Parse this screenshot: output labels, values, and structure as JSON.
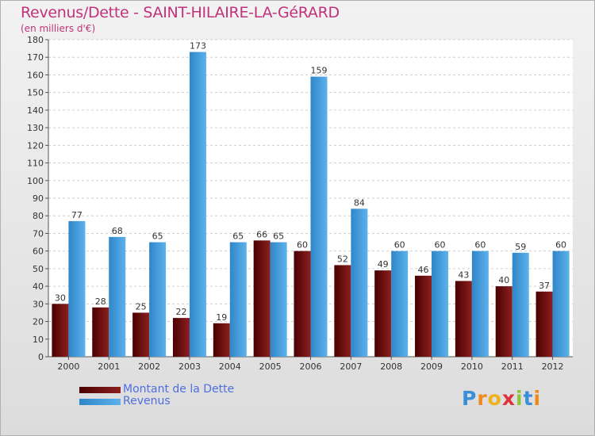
{
  "title": "Revenus/Dette - SAINT-HILAIRE-LA-GéRARD",
  "subtitle": "(en milliers d'€)",
  "legend": {
    "dette": "Montant de la Dette",
    "revenus": "Revenus"
  },
  "logo": {
    "text": "Proxiti",
    "letters": [
      "P",
      "r",
      "o",
      "x",
      "i",
      "t",
      "i"
    ]
  },
  "colors": {
    "title": "#c0327a",
    "legend_text": "#4f6ee0",
    "dette_dark": "#4a0000",
    "dette_light": "#8c2020",
    "revenus_dark": "#2f86c8",
    "revenus_light": "#5db2ec"
  },
  "chart_data": {
    "type": "bar",
    "title": "Revenus/Dette - SAINT-HILAIRE-LA-GéRARD",
    "ylabel": "(en milliers d'€)",
    "xlabel": "",
    "categories": [
      "2000",
      "2001",
      "2002",
      "2003",
      "2004",
      "2005",
      "2006",
      "2007",
      "2008",
      "2009",
      "2010",
      "2011",
      "2012"
    ],
    "series": [
      {
        "name": "Montant de la Dette",
        "values": [
          30,
          28,
          25,
          22,
          19,
          66,
          60,
          52,
          49,
          46,
          43,
          40,
          37
        ]
      },
      {
        "name": "Revenus",
        "values": [
          77,
          68,
          65,
          173,
          65,
          65,
          159,
          84,
          60,
          60,
          60,
          59,
          60
        ]
      }
    ],
    "ylim": [
      0,
      180
    ],
    "yticks": [
      0,
      10,
      20,
      30,
      40,
      50,
      60,
      70,
      80,
      90,
      100,
      110,
      120,
      130,
      140,
      150,
      160,
      170,
      180
    ],
    "grid": true,
    "legend_position": "bottom-left"
  }
}
